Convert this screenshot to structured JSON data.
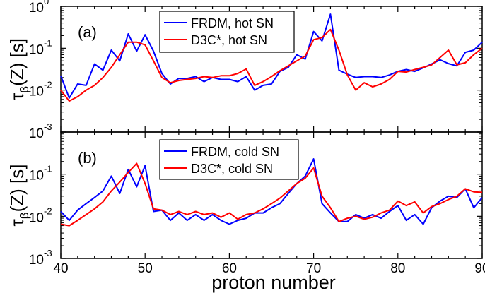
{
  "chart_data": [
    {
      "type": "line",
      "panel_label": "(a)",
      "ylabel_main": "τ",
      "ylabel_sub": "β",
      "ylabel_rest": "(Z) [s]",
      "yscale": "log",
      "ylim_exp": [
        -3,
        0
      ],
      "ytick_base": "10",
      "ytick_exponents": [
        "-3",
        "-2",
        "-1",
        "0"
      ],
      "xlim": [
        40,
        90
      ],
      "series": [
        {
          "name": "FRDM, hot SN",
          "color": "#0000ff",
          "x": [
            40,
            41,
            42,
            43,
            44,
            45,
            46,
            47,
            48,
            49,
            50,
            51,
            52,
            53,
            54,
            55,
            56,
            57,
            58,
            59,
            60,
            61,
            62,
            63,
            64,
            65,
            66,
            67,
            68,
            69,
            70,
            71,
            72,
            73,
            74,
            75,
            76,
            77,
            78,
            79,
            80,
            81,
            82,
            83,
            84,
            85,
            86,
            87,
            88,
            89,
            90
          ],
          "y": [
            0.022,
            0.0065,
            0.014,
            0.013,
            0.042,
            0.03,
            0.09,
            0.05,
            0.22,
            0.085,
            0.21,
            0.085,
            0.025,
            0.014,
            0.019,
            0.019,
            0.021,
            0.016,
            0.02,
            0.018,
            0.018,
            0.016,
            0.021,
            0.01,
            0.013,
            0.014,
            0.028,
            0.035,
            0.07,
            0.055,
            0.25,
            0.15,
            0.65,
            0.03,
            0.024,
            0.02,
            0.021,
            0.021,
            0.02,
            0.023,
            0.028,
            0.031,
            0.028,
            0.034,
            0.042,
            0.053,
            0.043,
            0.038,
            0.08,
            0.09,
            0.14
          ]
        },
        {
          "name": "D3C*, hot SN",
          "color": "#ff0000",
          "x": [
            40,
            41,
            42,
            43,
            44,
            45,
            46,
            47,
            48,
            49,
            50,
            51,
            52,
            53,
            54,
            55,
            56,
            57,
            58,
            59,
            60,
            61,
            62,
            63,
            64,
            65,
            66,
            67,
            68,
            69,
            70,
            71,
            72,
            73,
            74,
            75,
            76,
            77,
            78,
            79,
            80,
            81,
            82,
            83,
            84,
            85,
            86,
            87,
            88,
            89,
            90
          ],
          "y": [
            0.01,
            0.0055,
            0.007,
            0.01,
            0.013,
            0.02,
            0.035,
            0.07,
            0.14,
            0.14,
            0.12,
            0.05,
            0.02,
            0.015,
            0.017,
            0.018,
            0.019,
            0.021,
            0.02,
            0.022,
            0.022,
            0.025,
            0.032,
            0.013,
            0.016,
            0.021,
            0.029,
            0.038,
            0.05,
            0.065,
            0.16,
            0.18,
            0.28,
            0.09,
            0.023,
            0.01,
            0.015,
            0.012,
            0.014,
            0.018,
            0.028,
            0.027,
            0.031,
            0.035,
            0.04,
            0.06,
            0.09,
            0.04,
            0.045,
            0.07,
            0.1
          ]
        }
      ]
    },
    {
      "type": "line",
      "panel_label": "(b)",
      "ylabel_main": "τ",
      "ylabel_sub": "β",
      "ylabel_rest": "(Z) [s]",
      "yscale": "log",
      "ylim_exp": [
        -3,
        0
      ],
      "ytick_base": "10",
      "ytick_exponents": [
        "-3",
        "-2",
        "-1"
      ],
      "xlim": [
        40,
        90
      ],
      "xlabel": "proton number",
      "xticks": [
        "40",
        "50",
        "60",
        "70",
        "80",
        "90"
      ],
      "series": [
        {
          "name": "FRDM, cold SN",
          "color": "#0000ff",
          "x": [
            40,
            41,
            42,
            43,
            44,
            45,
            46,
            47,
            48,
            49,
            50,
            51,
            52,
            53,
            54,
            55,
            56,
            57,
            58,
            59,
            60,
            61,
            62,
            63,
            64,
            65,
            66,
            67,
            68,
            69,
            70,
            71,
            72,
            73,
            74,
            75,
            76,
            77,
            78,
            79,
            80,
            81,
            82,
            83,
            84,
            85,
            86,
            87,
            88,
            89,
            90
          ],
          "y": [
            0.013,
            0.008,
            0.014,
            0.02,
            0.028,
            0.04,
            0.09,
            0.035,
            0.13,
            0.05,
            0.16,
            0.013,
            0.014,
            0.008,
            0.012,
            0.008,
            0.011,
            0.008,
            0.011,
            0.008,
            0.0065,
            0.008,
            0.009,
            0.012,
            0.012,
            0.016,
            0.02,
            0.035,
            0.06,
            0.09,
            0.23,
            0.02,
            0.012,
            0.0075,
            0.0075,
            0.011,
            0.009,
            0.011,
            0.009,
            0.013,
            0.018,
            0.008,
            0.011,
            0.0065,
            0.016,
            0.023,
            0.03,
            0.028,
            0.045,
            0.016,
            0.028
          ]
        },
        {
          "name": "D3C*, cold SN",
          "color": "#ff0000",
          "x": [
            40,
            41,
            42,
            43,
            44,
            45,
            46,
            47,
            48,
            49,
            50,
            51,
            52,
            53,
            54,
            55,
            56,
            57,
            58,
            59,
            60,
            61,
            62,
            63,
            64,
            65,
            66,
            67,
            68,
            69,
            70,
            71,
            72,
            73,
            74,
            75,
            76,
            77,
            78,
            79,
            80,
            81,
            82,
            83,
            84,
            85,
            86,
            87,
            88,
            89,
            90
          ],
          "y": [
            0.0065,
            0.006,
            0.008,
            0.011,
            0.015,
            0.022,
            0.04,
            0.065,
            0.11,
            0.18,
            0.06,
            0.015,
            0.014,
            0.011,
            0.013,
            0.011,
            0.013,
            0.011,
            0.012,
            0.0095,
            0.012,
            0.0085,
            0.011,
            0.012,
            0.015,
            0.02,
            0.027,
            0.04,
            0.06,
            0.08,
            0.14,
            0.03,
            0.016,
            0.0075,
            0.009,
            0.01,
            0.0085,
            0.0095,
            0.012,
            0.014,
            0.023,
            0.018,
            0.022,
            0.012,
            0.017,
            0.02,
            0.025,
            0.03,
            0.045,
            0.038,
            0.037
          ]
        }
      ]
    }
  ]
}
